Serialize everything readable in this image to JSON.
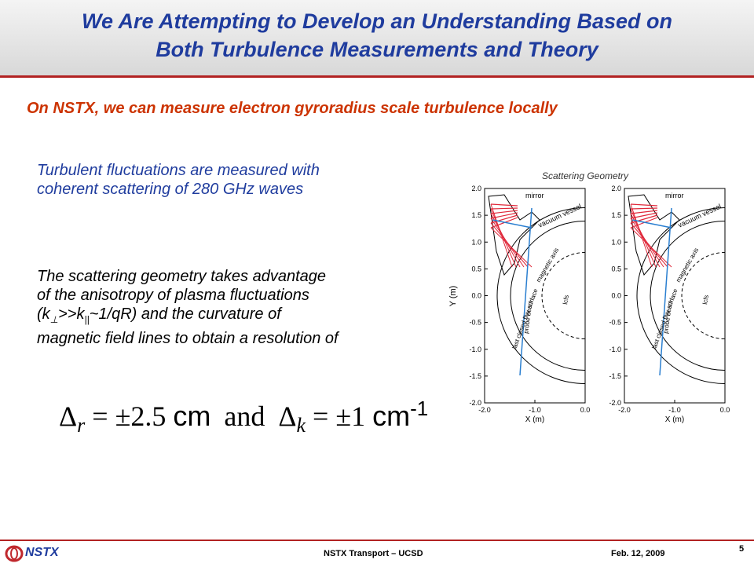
{
  "header": {
    "title_line1": "We Are Attempting to Develop an Understanding Based on",
    "title_line2": "Both Turbulence Measurements and Theory"
  },
  "subtitle": "On NSTX, we can measure electron gyroradius scale turbulence locally",
  "paragraph1": [
    "Turbulent fluctuations are measured with",
    "coherent scattering of 280 GHz waves"
  ],
  "paragraph2": {
    "line1": "The scattering geometry takes advantage",
    "line2": "of the anisotropy of plasma fluctuations",
    "line3": [
      "(k",
      "⊥",
      ">>k",
      "||",
      "~1/qR) and the curvature of"
    ],
    "line4": "magnetic field lines to obtain a resolution of"
  },
  "formula": {
    "delta1": "Δ",
    "sub1": "r",
    "eq1": "= ±2.5",
    "unit1": "cm",
    "and": "and",
    "delta2": "Δ",
    "sub2": "k",
    "eq2": "= ±1",
    "unit2": "cm",
    "sup2": "-1"
  },
  "figure": {
    "title": "Scattering Geometry",
    "y_label": "Y (m)",
    "x_label": "X (m)",
    "y_ticks": [
      "2.0",
      "1.5",
      "1.0",
      "0.5",
      "0.0",
      "-0.5",
      "-1.0",
      "-1.5",
      "-2.0"
    ],
    "x_ticks": [
      "-2.0",
      "-1.0",
      "0.0"
    ],
    "panels": [
      {
        "mirror": "mirror",
        "vessel": "vacuum vessel",
        "axis": "magnetic axis",
        "lcfs_long": "last closed flux surface",
        "beam": "probe beam",
        "lcfs": "lcfs"
      },
      {
        "mirror": "mirror",
        "vessel": "vacuum vessel",
        "axis": "magnetic axis",
        "lcfs_long": "last closed flux surface",
        "beam": "probe beam",
        "lcfs": "lcfs"
      }
    ]
  },
  "footer": {
    "logo": "NSTX",
    "center": "NSTX Transport – UCSD",
    "date": "Feb. 12, 2009",
    "page": "5"
  }
}
